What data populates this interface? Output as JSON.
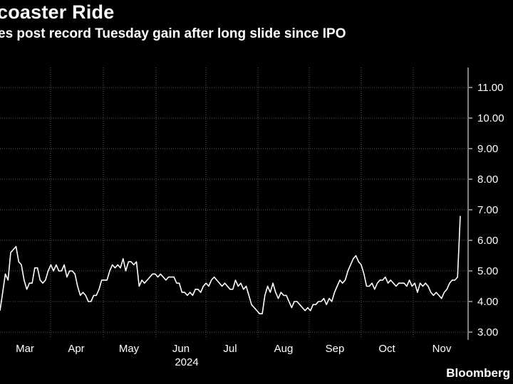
{
  "header": {
    "title": "coaster Ride",
    "subtitle": "es post record Tuesday gain after long slide since IPO"
  },
  "source": "Bloomberg",
  "colors": {
    "background": "#000000",
    "line": "#ffffff",
    "grid": "#5a5a5a",
    "text": "#ffffff"
  },
  "chart_data": {
    "type": "line",
    "title": "coaster Ride",
    "subtitle": "es post record Tuesday gain after long slide since IPO",
    "xlabel": "",
    "ylabel": "",
    "year_label": "2024",
    "x_ticks": [
      "Mar",
      "Apr",
      "May",
      "Jun",
      "Jul",
      "Aug",
      "Sep",
      "Oct",
      "Nov"
    ],
    "y_ticks": [
      "3.00",
      "4.00",
      "5.00",
      "6.00",
      "7.00",
      "8.00",
      "9.00",
      "10.00",
      "11.00"
    ],
    "ylim": [
      2.9,
      11.6
    ],
    "y_axis_position": "right",
    "grid": true,
    "series": [
      {
        "values": [
          3.7,
          4.3,
          4.9,
          4.7,
          5.6,
          5.7,
          5.8,
          5.3,
          5.2,
          4.7,
          4.4,
          4.6,
          4.6,
          5.1,
          5.1,
          4.7,
          4.6,
          4.7,
          5.0,
          5.2,
          5.0,
          5.2,
          5.0,
          5.0,
          5.2,
          4.8,
          5.0,
          5.0,
          4.9,
          4.5,
          4.2,
          4.3,
          4.2,
          4.0,
          4.0,
          4.2,
          4.2,
          4.4,
          4.7,
          4.7,
          4.7,
          5.0,
          5.2,
          5.1,
          5.2,
          5.1,
          5.4,
          5.0,
          5.3,
          5.3,
          5.2,
          5.3,
          4.5,
          4.7,
          4.6,
          4.7,
          4.8,
          4.9,
          4.9,
          4.8,
          4.9,
          4.8,
          4.7,
          4.8,
          4.8,
          4.8,
          4.6,
          4.6,
          4.3,
          4.3,
          4.2,
          4.3,
          4.2,
          4.4,
          4.4,
          4.3,
          4.5,
          4.6,
          4.5,
          4.7,
          4.8,
          4.7,
          4.6,
          4.5,
          4.6,
          4.5,
          4.4,
          4.4,
          4.7,
          4.5,
          4.6,
          4.4,
          4.5,
          4.2,
          3.9,
          3.8,
          3.7,
          3.6,
          3.6,
          4.2,
          4.5,
          4.3,
          4.6,
          4.3,
          4.1,
          4.3,
          4.2,
          4.2,
          4.0,
          3.8,
          4.0,
          4.0,
          3.9,
          3.8,
          3.7,
          3.8,
          3.7,
          3.9,
          3.9,
          4.0,
          4.0,
          4.1,
          3.9,
          4.1,
          4.0,
          4.3,
          4.5,
          4.7,
          4.6,
          4.7,
          5.0,
          5.2,
          5.4,
          5.5,
          5.3,
          5.2,
          4.9,
          4.5,
          4.5,
          4.6,
          4.4,
          4.6,
          4.7,
          4.7,
          4.8,
          4.6,
          4.7,
          4.6,
          4.5,
          4.6,
          4.6,
          4.6,
          4.5,
          4.7,
          4.5,
          4.6,
          4.3,
          4.6,
          4.5,
          4.6,
          4.5,
          4.3,
          4.2,
          4.3,
          4.2,
          4.1,
          4.3,
          4.4,
          4.6,
          4.7,
          4.7,
          4.8,
          6.8
        ]
      }
    ]
  }
}
